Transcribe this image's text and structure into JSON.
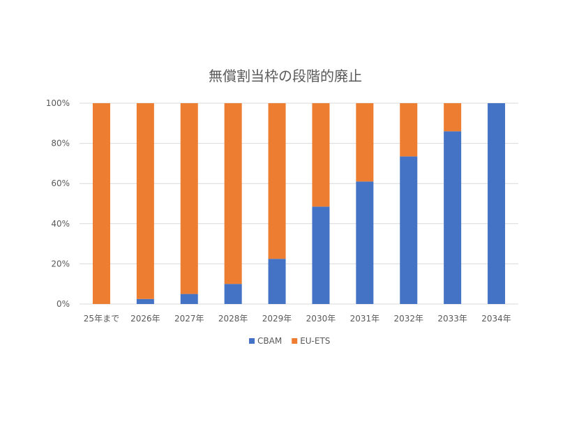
{
  "chart_data": {
    "type": "bar",
    "stacked": true,
    "title": "無償割当枠の段階的廃止",
    "categories": [
      "25年まで",
      "2026年",
      "2027年",
      "2028年",
      "2029年",
      "2030年",
      "2031年",
      "2032年",
      "2033年",
      "2034年"
    ],
    "series": [
      {
        "name": "CBAM",
        "color": "#4472C4",
        "values": [
          0,
          2.5,
          5,
          10,
          22.5,
          48.5,
          61,
          73.5,
          86,
          100
        ]
      },
      {
        "name": "EU-ETS",
        "color": "#ED7D31",
        "values": [
          100,
          97.5,
          95,
          90,
          77.5,
          51.5,
          39,
          26.5,
          14,
          0
        ]
      }
    ],
    "ylim": [
      0,
      100
    ],
    "yticks": [
      "0%",
      "20%",
      "40%",
      "60%",
      "80%",
      "100%"
    ],
    "grid": true,
    "legend": "bottom"
  }
}
